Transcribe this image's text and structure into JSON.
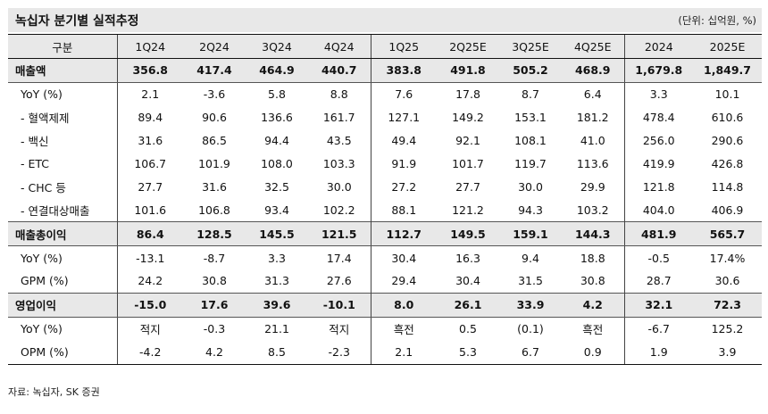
{
  "title": "녹십자 분기별 실적추정",
  "unit": "(단위: 십억원, %)",
  "columns": [
    "구분",
    "1Q24",
    "2Q24",
    "3Q24",
    "4Q24",
    "1Q25",
    "2Q25E",
    "3Q25E",
    "4Q25E",
    "2024",
    "2025E"
  ],
  "rows": [
    {
      "label": "매출액",
      "bold": true,
      "values": [
        "356.8",
        "417.4",
        "464.9",
        "440.7",
        "383.8",
        "491.8",
        "505.2",
        "468.9",
        "1,679.8",
        "1,849.7"
      ]
    },
    {
      "label": "YoY (%)",
      "values": [
        "2.1",
        "-3.6",
        "5.8",
        "8.8",
        "7.6",
        "17.8",
        "8.7",
        "6.4",
        "3.3",
        "10.1"
      ]
    },
    {
      "label": "- 혈액제제",
      "values": [
        "89.4",
        "90.6",
        "136.6",
        "161.7",
        "127.1",
        "149.2",
        "153.1",
        "181.2",
        "478.4",
        "610.6"
      ]
    },
    {
      "label": "- 백신",
      "values": [
        "31.6",
        "86.5",
        "94.4",
        "43.5",
        "49.4",
        "92.1",
        "108.1",
        "41.0",
        "256.0",
        "290.6"
      ]
    },
    {
      "label": "- ETC",
      "values": [
        "106.7",
        "101.9",
        "108.0",
        "103.3",
        "91.9",
        "101.7",
        "119.7",
        "113.6",
        "419.9",
        "426.8"
      ]
    },
    {
      "label": "- CHC 등",
      "values": [
        "27.7",
        "31.6",
        "32.5",
        "30.0",
        "27.2",
        "27.7",
        "30.0",
        "29.9",
        "121.8",
        "114.8"
      ]
    },
    {
      "label": "- 연결대상매출",
      "values": [
        "101.6",
        "106.8",
        "93.4",
        "102.2",
        "88.1",
        "121.2",
        "94.3",
        "103.2",
        "404.0",
        "406.9"
      ]
    },
    {
      "label": "매출총이익",
      "bold": true,
      "values": [
        "86.4",
        "128.5",
        "145.5",
        "121.5",
        "112.7",
        "149.5",
        "159.1",
        "144.3",
        "481.9",
        "565.7"
      ]
    },
    {
      "label": "YoY (%)",
      "values": [
        "-13.1",
        "-8.7",
        "3.3",
        "17.4",
        "30.4",
        "16.3",
        "9.4",
        "18.8",
        "-0.5",
        "17.4%"
      ]
    },
    {
      "label": "GPM (%)",
      "values": [
        "24.2",
        "30.8",
        "31.3",
        "27.6",
        "29.4",
        "30.4",
        "31.5",
        "30.8",
        "28.7",
        "30.6"
      ]
    },
    {
      "label": "영업이익",
      "bold": true,
      "values": [
        "-15.0",
        "17.6",
        "39.6",
        "-10.1",
        "8.0",
        "26.1",
        "33.9",
        "4.2",
        "32.1",
        "72.3"
      ]
    },
    {
      "label": "YoY (%)",
      "values": [
        "적지",
        "-0.3",
        "21.1",
        "적지",
        "흑전",
        "0.5",
        "(0.1)",
        "흑전",
        "-6.7",
        "125.2"
      ]
    },
    {
      "label": "OPM (%)",
      "values": [
        "-4.2",
        "4.2",
        "8.5",
        "-2.3",
        "2.1",
        "5.3",
        "6.7",
        "0.9",
        "1.9",
        "3.9"
      ]
    }
  ],
  "source": "자료: 녹십자, SK 증권"
}
